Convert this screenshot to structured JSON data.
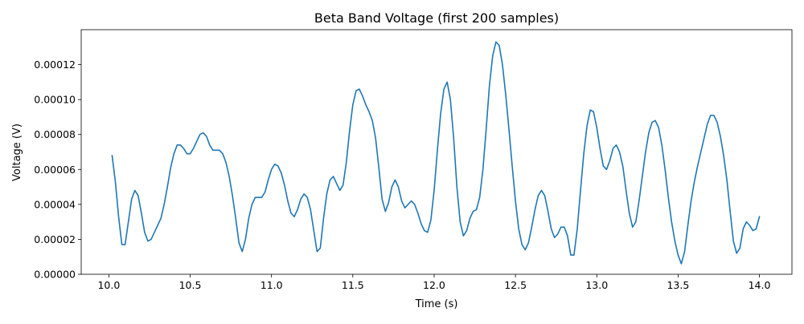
{
  "chart_data": {
    "type": "line",
    "title": "Beta Band Voltage (first 200 samples)",
    "xlabel": "Time (s)",
    "ylabel": "Voltage (V)",
    "xlim": [
      9.83,
      14.2
    ],
    "ylim": [
      0.0,
      0.00014
    ],
    "grid": false,
    "legend": "none",
    "xticks": [
      10.0,
      10.5,
      11.0,
      11.5,
      12.0,
      12.5,
      13.0,
      13.5,
      14.0
    ],
    "xtick_labels": [
      "10.0",
      "10.5",
      "11.0",
      "11.5",
      "12.0",
      "12.5",
      "13.0",
      "13.5",
      "14.0"
    ],
    "yticks": [
      0.0,
      2e-05,
      4e-05,
      6e-05,
      8e-05,
      0.0001,
      0.00012
    ],
    "ytick_labels": [
      "0.00000",
      "0.00002",
      "0.00004",
      "0.00006",
      "0.00008",
      "0.00010",
      "0.00012"
    ],
    "series": [
      {
        "color": "#1f77b4",
        "x": [
          10.02,
          10.04,
          10.06,
          10.08,
          10.1,
          10.12,
          10.14,
          10.16,
          10.18,
          10.2,
          10.22,
          10.24,
          10.26,
          10.28,
          10.3,
          10.32,
          10.34,
          10.36,
          10.38,
          10.4,
          10.42,
          10.44,
          10.46,
          10.48,
          10.5,
          10.52,
          10.54,
          10.56,
          10.58,
          10.6,
          10.62,
          10.64,
          10.66,
          10.68,
          10.7,
          10.72,
          10.74,
          10.76,
          10.78,
          10.8,
          10.82,
          10.84,
          10.86,
          10.88,
          10.9,
          10.92,
          10.94,
          10.96,
          10.98,
          11.0,
          11.02,
          11.04,
          11.06,
          11.08,
          11.1,
          11.12,
          11.14,
          11.16,
          11.18,
          11.2,
          11.22,
          11.24,
          11.26,
          11.28,
          11.3,
          11.32,
          11.34,
          11.36,
          11.38,
          11.4,
          11.42,
          11.44,
          11.46,
          11.48,
          11.5,
          11.52,
          11.54,
          11.56,
          11.58,
          11.6,
          11.62,
          11.64,
          11.66,
          11.68,
          11.7,
          11.72,
          11.74,
          11.76,
          11.78,
          11.8,
          11.82,
          11.84,
          11.86,
          11.88,
          11.9,
          11.92,
          11.94,
          11.96,
          11.98,
          12.0,
          12.02,
          12.04,
          12.06,
          12.08,
          12.1,
          12.12,
          12.14,
          12.16,
          12.18,
          12.2,
          12.22,
          12.24,
          12.26,
          12.28,
          12.3,
          12.32,
          12.34,
          12.36,
          12.38,
          12.4,
          12.42,
          12.44,
          12.46,
          12.48,
          12.5,
          12.52,
          12.54,
          12.56,
          12.58,
          12.6,
          12.62,
          12.64,
          12.66,
          12.68,
          12.7,
          12.72,
          12.74,
          12.76,
          12.78,
          12.8,
          12.82,
          12.84,
          12.86,
          12.88,
          12.9,
          12.92,
          12.94,
          12.96,
          12.98,
          13.0,
          13.02,
          13.04,
          13.06,
          13.08,
          13.1,
          13.12,
          13.14,
          13.16,
          13.18,
          13.2,
          13.22,
          13.24,
          13.26,
          13.28,
          13.3,
          13.32,
          13.34,
          13.36,
          13.38,
          13.4,
          13.42,
          13.44,
          13.46,
          13.48,
          13.5,
          13.52,
          13.54,
          13.56,
          13.58,
          13.6,
          13.62,
          13.64,
          13.66,
          13.68,
          13.7,
          13.72,
          13.74,
          13.76,
          13.78,
          13.8,
          13.82,
          13.84,
          13.86,
          13.88,
          13.9,
          13.92,
          13.94,
          13.96,
          13.98,
          14.0
        ],
        "y": [
          6.8e-05,
          5.3e-05,
          3.3e-05,
          1.7e-05,
          1.7e-05,
          3e-05,
          4.3e-05,
          4.8e-05,
          4.5e-05,
          3.5e-05,
          2.4e-05,
          1.9e-05,
          2e-05,
          2.4e-05,
          2.8e-05,
          3.2e-05,
          4e-05,
          5e-05,
          6.1e-05,
          6.9e-05,
          7.4e-05,
          7.4e-05,
          7.2e-05,
          6.9e-05,
          6.9e-05,
          7.2e-05,
          7.6e-05,
          8e-05,
          8.1e-05,
          7.9e-05,
          7.4e-05,
          7.1e-05,
          7.1e-05,
          7.1e-05,
          6.9e-05,
          6.4e-05,
          5.6e-05,
          4.5e-05,
          3.2e-05,
          1.8e-05,
          1.3e-05,
          2e-05,
          3.2e-05,
          4e-05,
          4.4e-05,
          4.4e-05,
          4.4e-05,
          4.7e-05,
          5.4e-05,
          6e-05,
          6.3e-05,
          6.2e-05,
          5.8e-05,
          5.1e-05,
          4.2e-05,
          3.5e-05,
          3.3e-05,
          3.7e-05,
          4.3e-05,
          4.6e-05,
          4.4e-05,
          3.7e-05,
          2.5e-05,
          1.3e-05,
          1.5e-05,
          3.2e-05,
          4.6e-05,
          5.4e-05,
          5.6e-05,
          5.2e-05,
          4.8e-05,
          5.1e-05,
          6.4e-05,
          8.2e-05,
          9.7e-05,
          0.000105,
          0.000106,
          0.000102,
          9.7e-05,
          9.3e-05,
          8.8e-05,
          7.8e-05,
          6.1e-05,
          4.3e-05,
          3.6e-05,
          4.1e-05,
          5e-05,
          5.4e-05,
          5e-05,
          4.2e-05,
          3.8e-05,
          4e-05,
          4.2e-05,
          4e-05,
          3.5e-05,
          2.9e-05,
          2.5e-05,
          2.4e-05,
          3.1e-05,
          4.8e-05,
          7.1e-05,
          9.2e-05,
          0.000106,
          0.00011,
          0.0001,
          7.8e-05,
          5e-05,
          3e-05,
          2.2e-05,
          2.5e-05,
          3.2e-05,
          3.6e-05,
          3.7e-05,
          4.4e-05,
          6e-05,
          8.3e-05,
          0.000108,
          0.000125,
          0.000133,
          0.000131,
          0.00012,
          0.000103,
          8.3e-05,
          6.2e-05,
          4.2e-05,
          2.6e-05,
          1.7e-05,
          1.4e-05,
          1.8e-05,
          2.7e-05,
          3.7e-05,
          4.5e-05,
          4.8e-05,
          4.5e-05,
          3.6e-05,
          2.6e-05,
          2.1e-05,
          2.3e-05,
          2.7e-05,
          2.7e-05,
          2.2e-05,
          1.1e-05,
          1.1e-05,
          2.6e-05,
          4.8e-05,
          6.9e-05,
          8.5e-05,
          9.4e-05,
          9.3e-05,
          8.4e-05,
          7.2e-05,
          6.2e-05,
          6e-05,
          6.5e-05,
          7.2e-05,
          7.4e-05,
          7e-05,
          6.2e-05,
          4.8e-05,
          3.5e-05,
          2.7e-05,
          3e-05,
          4.2e-05,
          5.6e-05,
          7e-05,
          8.1e-05,
          8.7e-05,
          8.8e-05,
          8.4e-05,
          7.4e-05,
          6e-05,
          4.4e-05,
          3e-05,
          1.9e-05,
          1.1e-05,
          6e-06,
          1.3e-05,
          2.8e-05,
          4.2e-05,
          5.3e-05,
          6.2e-05,
          7e-05,
          7.8e-05,
          8.6e-05,
          9.1e-05,
          9.1e-05,
          8.7e-05,
          7.9e-05,
          6.8e-05,
          5.4e-05,
          3.6e-05,
          1.9e-05,
          1.2e-05,
          1.5e-05,
          2.6e-05,
          3e-05,
          2.8e-05,
          2.5e-05,
          2.6e-05,
          3.3e-05
        ]
      }
    ]
  }
}
